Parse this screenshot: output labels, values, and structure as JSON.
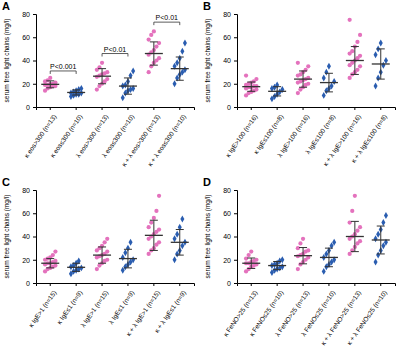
{
  "chart_data": [
    {
      "type": "scatter",
      "title": "A",
      "ylabel": "serum free light chains (mg/l)",
      "categories": [
        "κ eos>300 (n=13)",
        "κ eos≤300 (n=10)",
        "λ eos>300 (n=13)",
        "λ eos≤300 (n=10)",
        "κ + λ eos>300 (n=13)",
        "κ + λ eos≤300 (n=10)"
      ],
      "ylim": [
        0,
        80
      ],
      "yticks": [
        0,
        20,
        40,
        60,
        80
      ],
      "series": [
        {
          "color": "#e472bd",
          "marker": "circle",
          "values": [
            [
              14,
              16,
              17,
              18,
              18,
              19,
              19,
              20,
              20,
              21,
              22,
              23,
              25
            ],
            null,
            [
              15,
              18,
              20,
              22,
              24,
              26,
              27,
              28,
              29,
              30,
              32,
              34,
              38
            ],
            null,
            [
              30,
              35,
              38,
              40,
              42,
              45,
              47,
              49,
              52,
              55,
              58,
              62,
              65
            ],
            null
          ],
          "mean": [
            19.5,
            null,
            26.5,
            null,
            46,
            null
          ],
          "error": [
            3,
            null,
            6.5,
            null,
            10,
            null
          ]
        },
        {
          "color": "#2a5db0",
          "marker": "diamond",
          "values": [
            null,
            [
              9,
              10,
              11,
              11,
              12,
              12,
              13,
              14,
              15,
              16
            ],
            null,
            [
              8,
              12,
              14,
              15,
              16,
              18,
              19,
              22,
              27,
              31
            ],
            null,
            [
              20,
              25,
              28,
              30,
              32,
              35,
              38,
              42,
              48,
              55
            ]
          ],
          "mean": [
            null,
            12.5,
            null,
            18,
            null,
            33
          ],
          "error": [
            null,
            2.2,
            null,
            7,
            null,
            10
          ]
        }
      ],
      "annotations": [
        {
          "text": "P<0.001",
          "from": 0,
          "to": 1,
          "y": 31
        },
        {
          "text": "P<0.01",
          "from": 2,
          "to": 3,
          "y": 46
        },
        {
          "text": "P<0.01",
          "from": 4,
          "to": 5,
          "y": 73
        }
      ]
    },
    {
      "type": "scatter",
      "title": "B",
      "ylabel": "serum free light chains (mg/l)",
      "categories": [
        "κ IgE>100 (n=16)",
        "κ IgE≤100 (n=8)",
        "λ IgE>100 (n=16)",
        "λ IgE≤100 (n=8)",
        "κ + λ IgE>100 (n=16)",
        "κ + λ IgE≤100 (n=8)"
      ],
      "ylim": [
        0,
        80
      ],
      "yticks": [
        0,
        20,
        40,
        60,
        80
      ],
      "series": [
        {
          "color": "#e472bd",
          "marker": "circle",
          "values": [
            [
              10,
              12,
              13,
              14,
              15,
              16,
              17,
              17,
              18,
              18,
              19,
              20,
              21,
              22,
              24,
              27
            ],
            null,
            [
              12,
              15,
              17,
              19,
              20,
              21,
              22,
              23,
              24,
              25,
              27,
              28,
              30,
              32,
              35,
              38
            ],
            null,
            [
              25,
              28,
              30,
              32,
              35,
              36,
              38,
              40,
              42,
              44,
              46,
              48,
              52,
              56,
              62,
              75
            ],
            null
          ],
          "mean": [
            17.5,
            null,
            24,
            null,
            40,
            null
          ],
          "error": [
            4,
            null,
            7,
            null,
            12,
            null
          ]
        },
        {
          "color": "#2a5db0",
          "marker": "diamond",
          "values": [
            null,
            [
              7,
              9,
              11,
              13,
              15,
              16,
              17,
              19
            ],
            null,
            [
              10,
              14,
              16,
              18,
              22,
              25,
              30,
              35
            ],
            null,
            [
              18,
              25,
              30,
              36,
              40,
              45,
              50,
              55
            ]
          ],
          "mean": [
            null,
            13.5,
            null,
            21,
            null,
            37
          ],
          "error": [
            null,
            4,
            null,
            8,
            null,
            13
          ]
        }
      ]
    },
    {
      "type": "scatter",
      "title": "C",
      "ylabel": "serum free light chains (mg/l)",
      "categories": [
        "κ IgE>1 (n=15)",
        "κ IgE≤1 (n=9)",
        "λ IgE>1 (n=15)",
        "λ IgE≤1 (n=9)",
        "κ + λ IgE>1 (n=15)",
        "κ + λ IgE≤1 (n=9)"
      ],
      "ylim": [
        0,
        80
      ],
      "yticks": [
        0,
        20,
        40,
        60,
        80
      ],
      "series": [
        {
          "color": "#e472bd",
          "marker": "circle",
          "values": [
            [
              10,
              12,
              13,
              14,
              15,
              16,
              17,
              17,
              18,
              19,
              20,
              21,
              22,
              24,
              27
            ],
            null,
            [
              12,
              15,
              17,
              19,
              20,
              22,
              23,
              24,
              25,
              27,
              28,
              30,
              32,
              35,
              38
            ],
            null,
            [
              25,
              28,
              30,
              33,
              35,
              38,
              40,
              42,
              44,
              46,
              48,
              52,
              56,
              62,
              75
            ],
            null
          ],
          "mean": [
            17,
            null,
            24,
            null,
            41,
            null
          ],
          "error": [
            4,
            null,
            7,
            null,
            13,
            null
          ]
        },
        {
          "color": "#2a5db0",
          "marker": "diamond",
          "values": [
            null,
            [
              8,
              10,
              11,
              12,
              13,
              14,
              15,
              17,
              19
            ],
            null,
            [
              11,
              14,
              16,
              18,
              20,
              22,
              26,
              30,
              35
            ],
            null,
            [
              20,
              25,
              28,
              32,
              35,
              38,
              42,
              48,
              55
            ]
          ],
          "mean": [
            null,
            13.5,
            null,
            21,
            null,
            35
          ],
          "error": [
            null,
            3.5,
            null,
            8,
            null,
            11
          ]
        }
      ]
    },
    {
      "type": "scatter",
      "title": "D",
      "ylabel": "serum free light chains (mg/l)",
      "categories": [
        "κ FeNO>25 (n=13)",
        "κ FeNO≤25 (n=10)",
        "λ FeNO>25 (n=13)",
        "λ FeNO≤25 (n=10)",
        "κ + λ FeNO>25 (n=13)",
        "κ + λ FeNO≤25 (n=10)"
      ],
      "ylim": [
        0,
        80
      ],
      "yticks": [
        0,
        20,
        40,
        60,
        80
      ],
      "series": [
        {
          "color": "#e472bd",
          "marker": "circle",
          "values": [
            [
              10,
              12,
              14,
              15,
              16,
              17,
              17,
              18,
              19,
              20,
              21,
              24,
              27
            ],
            null,
            [
              12,
              16,
              18,
              20,
              22,
              23,
              24,
              25,
              27,
              28,
              30,
              34,
              38
            ],
            null,
            [
              25,
              28,
              31,
              34,
              36,
              38,
              40,
              42,
              45,
              48,
              52,
              62,
              75
            ],
            null
          ],
          "mean": [
            17,
            null,
            23.5,
            null,
            40,
            null
          ],
          "error": [
            4.5,
            null,
            7,
            null,
            13,
            null
          ]
        },
        {
          "color": "#2a5db0",
          "marker": "diamond",
          "values": [
            null,
            [
              9,
              11,
              12,
              13,
              14,
              15,
              16,
              17,
              19,
              20
            ],
            null,
            [
              10,
              14,
              16,
              18,
              20,
              22,
              25,
              28,
              32,
              35
            ],
            null,
            [
              18,
              24,
              28,
              32,
              35,
              38,
              42,
              46,
              52,
              58
            ]
          ],
          "mean": [
            null,
            15,
            null,
            22,
            null,
            37
          ],
          "error": [
            null,
            3.5,
            null,
            8,
            null,
            12
          ]
        }
      ]
    }
  ]
}
